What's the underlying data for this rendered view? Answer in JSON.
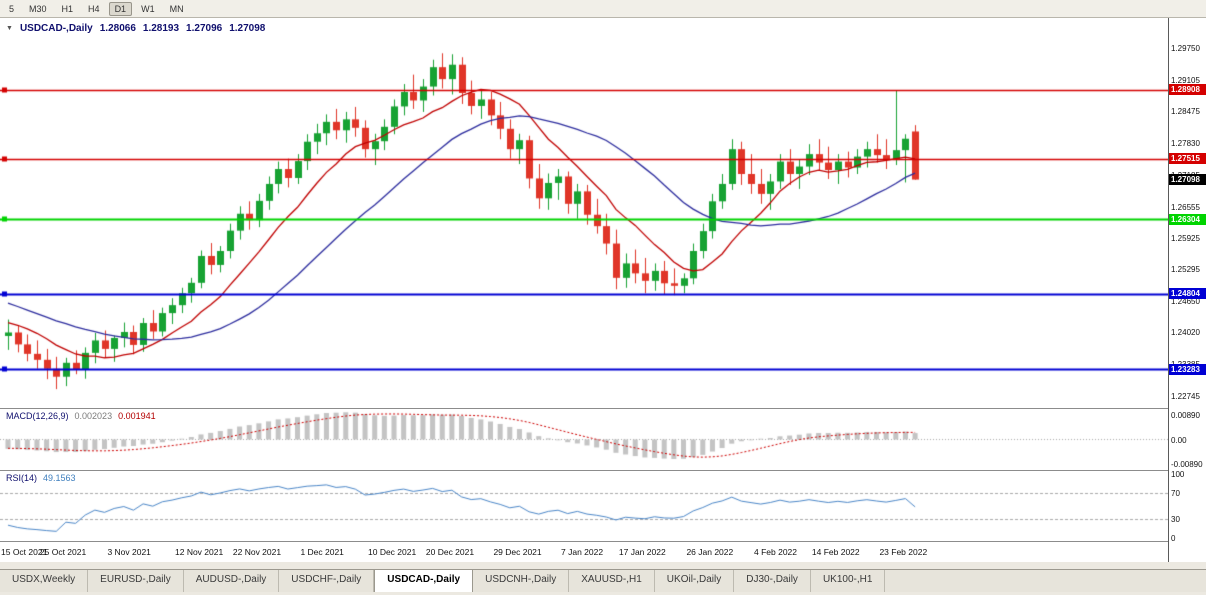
{
  "toolbar": {
    "timeframes": [
      "5",
      "M30",
      "H1",
      "H4",
      "D1",
      "W1",
      "MN"
    ],
    "active": "D1"
  },
  "chart": {
    "title": {
      "symbol": "USDCAD-,Daily",
      "open": "1.28066",
      "high": "1.28193",
      "low": "1.27096",
      "close": "1.27098"
    },
    "price_axis": {
      "ticks": [
        "1.29750",
        "1.29105",
        "1.28475",
        "1.27830",
        "1.27185",
        "1.26555",
        "1.25925",
        "1.25295",
        "1.24650",
        "1.24020",
        "1.23385",
        "1.22745"
      ]
    }
  },
  "indicators": {
    "macd": {
      "label": "MACD(12,26,9)",
      "value_main": "0.002023",
      "value_signal": "0.001941",
      "axis": [
        "0.00890",
        "0.00",
        "-0.00890"
      ],
      "axis_values": [
        0.0089,
        0,
        -0.0089
      ]
    },
    "rsi": {
      "label": "RSI(14)",
      "value": "49.1563",
      "axis": [
        "100",
        "70",
        "30",
        "0"
      ],
      "axis_values": [
        100,
        70,
        30,
        0
      ],
      "levels": [
        70,
        30
      ]
    }
  },
  "tabs": {
    "items": [
      "USDX,Weekly",
      "EURUSD-,Daily",
      "AUDUSD-,Daily",
      "USDCHF-,Daily",
      "USDCAD-,Daily",
      "USDCNH-,Daily",
      "XAUUSD-,H1",
      "UKOil-,Daily",
      "DJ30-,Daily",
      "UK100-,H1"
    ],
    "active_index": 4
  },
  "chart_data": {
    "type": "candlestick",
    "symbol": "USDCAD-",
    "timeframe": "Daily",
    "ylim": [
      1.225,
      1.3035
    ],
    "date_axis": {
      "labels": [
        "15 Oct 2021",
        "25 Oct 2021",
        "3 Nov 2021",
        "12 Nov 2021",
        "22 Nov 2021",
        "1 Dec 2021",
        "10 Dec 2021",
        "20 Dec 2021",
        "29 Dec 2021",
        "7 Jan 2022",
        "17 Jan 2022",
        "26 Jan 2022",
        "4 Feb 2022",
        "14 Feb 2022",
        "23 Feb 2022"
      ],
      "positions": [
        0,
        6,
        13,
        20,
        26,
        33,
        40,
        46,
        53,
        60,
        66,
        73,
        80,
        86,
        93
      ]
    },
    "candles": [
      [
        1.2395,
        1.2428,
        1.2367,
        1.2402
      ],
      [
        1.2402,
        1.2415,
        1.2362,
        1.2378
      ],
      [
        1.2378,
        1.2398,
        1.2344,
        1.2359
      ],
      [
        1.2359,
        1.2386,
        1.2329,
        1.2347
      ],
      [
        1.2347,
        1.2369,
        1.2308,
        1.2329
      ],
      [
        1.2329,
        1.2353,
        1.2288,
        1.2313
      ],
      [
        1.2313,
        1.2351,
        1.2294,
        1.2341
      ],
      [
        1.2341,
        1.2366,
        1.2318,
        1.2328
      ],
      [
        1.2328,
        1.2372,
        1.2309,
        1.2361
      ],
      [
        1.2361,
        1.2401,
        1.234,
        1.2386
      ],
      [
        1.2386,
        1.2406,
        1.2352,
        1.2369
      ],
      [
        1.2369,
        1.2396,
        1.2343,
        1.2391
      ],
      [
        1.2391,
        1.2422,
        1.2372,
        1.2403
      ],
      [
        1.2403,
        1.2416,
        1.2358,
        1.2377
      ],
      [
        1.2377,
        1.2431,
        1.2363,
        1.2421
      ],
      [
        1.2421,
        1.2447,
        1.2389,
        1.2404
      ],
      [
        1.2404,
        1.2452,
        1.2394,
        1.2441
      ],
      [
        1.2441,
        1.2471,
        1.2419,
        1.2457
      ],
      [
        1.2457,
        1.2492,
        1.2441,
        1.2481
      ],
      [
        1.2481,
        1.2512,
        1.2462,
        1.2502
      ],
      [
        1.2502,
        1.2567,
        1.2491,
        1.2556
      ],
      [
        1.2556,
        1.2582,
        1.2519,
        1.2538
      ],
      [
        1.2538,
        1.2576,
        1.2523,
        1.2566
      ],
      [
        1.2566,
        1.2621,
        1.2551,
        1.2607
      ],
      [
        1.2607,
        1.2656,
        1.2589,
        1.2641
      ],
      [
        1.2641,
        1.2666,
        1.2609,
        1.2628
      ],
      [
        1.2628,
        1.2681,
        1.2614,
        1.2667
      ],
      [
        1.2667,
        1.2716,
        1.2649,
        1.2701
      ],
      [
        1.2701,
        1.2746,
        1.2682,
        1.2731
      ],
      [
        1.2731,
        1.2752,
        1.2694,
        1.2713
      ],
      [
        1.2713,
        1.2761,
        1.2701,
        1.2747
      ],
      [
        1.2747,
        1.2801,
        1.2729,
        1.2786
      ],
      [
        1.2786,
        1.2822,
        1.2761,
        1.2803
      ],
      [
        1.2803,
        1.2841,
        1.2779,
        1.2826
      ],
      [
        1.2826,
        1.2852,
        1.2791,
        1.2809
      ],
      [
        1.2809,
        1.2846,
        1.2784,
        1.2831
      ],
      [
        1.2831,
        1.2856,
        1.2796,
        1.2814
      ],
      [
        1.2814,
        1.2829,
        1.2754,
        1.2771
      ],
      [
        1.2771,
        1.2802,
        1.2739,
        1.2787
      ],
      [
        1.2787,
        1.2831,
        1.2769,
        1.2816
      ],
      [
        1.2816,
        1.2871,
        1.2801,
        1.2857
      ],
      [
        1.2857,
        1.2902,
        1.2839,
        1.2886
      ],
      [
        1.2886,
        1.2921,
        1.2852,
        1.2869
      ],
      [
        1.2869,
        1.2912,
        1.2846,
        1.2897
      ],
      [
        1.2897,
        1.2951,
        1.2879,
        1.2936
      ],
      [
        1.2936,
        1.2964,
        1.2893,
        1.2912
      ],
      [
        1.2912,
        1.2962,
        1.2881,
        1.2941
      ],
      [
        1.2941,
        1.2956,
        1.2862,
        1.2884
      ],
      [
        1.2884,
        1.2909,
        1.2841,
        1.2858
      ],
      [
        1.2858,
        1.2892,
        1.2832,
        1.2871
      ],
      [
        1.2871,
        1.2886,
        1.2819,
        1.2839
      ],
      [
        1.2839,
        1.2866,
        1.2791,
        1.2812
      ],
      [
        1.2812,
        1.2831,
        1.2752,
        1.2771
      ],
      [
        1.2771,
        1.2802,
        1.2741,
        1.2789
      ],
      [
        1.2789,
        1.2798,
        1.2692,
        1.2712
      ],
      [
        1.2712,
        1.2741,
        1.2651,
        1.2672
      ],
      [
        1.2672,
        1.2722,
        1.2649,
        1.2703
      ],
      [
        1.2703,
        1.2731,
        1.2669,
        1.2716
      ],
      [
        1.2716,
        1.2726,
        1.2641,
        1.2661
      ],
      [
        1.2661,
        1.2701,
        1.2631,
        1.2686
      ],
      [
        1.2686,
        1.2699,
        1.2619,
        1.2639
      ],
      [
        1.2639,
        1.2671,
        1.2601,
        1.2616
      ],
      [
        1.2616,
        1.2641,
        1.2559,
        1.2581
      ],
      [
        1.2581,
        1.2609,
        1.2489,
        1.2512
      ],
      [
        1.2512,
        1.2561,
        1.2492,
        1.2541
      ],
      [
        1.2541,
        1.2569,
        1.2501,
        1.2521
      ],
      [
        1.2521,
        1.2552,
        1.2481,
        1.2506
      ],
      [
        1.2506,
        1.2541,
        1.2486,
        1.2526
      ],
      [
        1.2526,
        1.2546,
        1.2479,
        1.2501
      ],
      [
        1.2501,
        1.2531,
        1.2477,
        1.2496
      ],
      [
        1.2496,
        1.2521,
        1.2481,
        1.2511
      ],
      [
        1.2511,
        1.2581,
        1.2499,
        1.2566
      ],
      [
        1.2566,
        1.2621,
        1.2551,
        1.2606
      ],
      [
        1.2606,
        1.2681,
        1.2591,
        1.2666
      ],
      [
        1.2666,
        1.2721,
        1.2651,
        1.2701
      ],
      [
        1.2701,
        1.2791,
        1.2689,
        1.2771
      ],
      [
        1.2771,
        1.2786,
        1.2699,
        1.2721
      ],
      [
        1.2721,
        1.2761,
        1.2681,
        1.2701
      ],
      [
        1.2701,
        1.2731,
        1.2661,
        1.2681
      ],
      [
        1.2681,
        1.2721,
        1.2649,
        1.2706
      ],
      [
        1.2706,
        1.2761,
        1.2691,
        1.2746
      ],
      [
        1.2746,
        1.2771,
        1.2699,
        1.2721
      ],
      [
        1.2721,
        1.2751,
        1.2691,
        1.2736
      ],
      [
        1.2736,
        1.2781,
        1.2719,
        1.2761
      ],
      [
        1.2761,
        1.2791,
        1.2729,
        1.2744
      ],
      [
        1.2744,
        1.2776,
        1.2711,
        1.2729
      ],
      [
        1.2729,
        1.2761,
        1.2701,
        1.2746
      ],
      [
        1.2746,
        1.2766,
        1.2714,
        1.2734
      ],
      [
        1.2734,
        1.2771,
        1.2721,
        1.2756
      ],
      [
        1.2756,
        1.2786,
        1.2734,
        1.2771
      ],
      [
        1.2771,
        1.2801,
        1.2744,
        1.2759
      ],
      [
        1.2759,
        1.2791,
        1.2731,
        1.2749
      ],
      [
        1.2749,
        1.289,
        1.2739,
        1.2769
      ],
      [
        1.2769,
        1.2801,
        1.2704,
        1.2792
      ],
      [
        1.28066,
        1.28193,
        1.27096,
        1.27098
      ]
    ],
    "overlays": [
      {
        "name": "ma-fast",
        "type": "sma",
        "period": 10,
        "color": "#C00000"
      },
      {
        "name": "ma-slow",
        "type": "sma",
        "period": 24,
        "color": "#2C2C9E"
      }
    ],
    "levels": [
      {
        "price": 1.28908,
        "label": "1.28908",
        "color": "#D40000",
        "line": true,
        "width": 1.6
      },
      {
        "price": 1.27515,
        "label": "1.27515",
        "color": "#D40000",
        "line": true,
        "width": 1.6
      },
      {
        "price": 1.27098,
        "label": "1.27098",
        "color": "#000000",
        "line": false,
        "width": 0
      },
      {
        "price": 1.26304,
        "label": "1.26304",
        "color": "#00D400",
        "line": true,
        "width": 2
      },
      {
        "price": 1.24804,
        "label": "1.24804",
        "color": "#0000D4",
        "line": true,
        "width": 2
      },
      {
        "price": 1.23283,
        "label": "1.23283",
        "color": "#0000D4",
        "line": true,
        "width": 2
      }
    ],
    "macd_params": {
      "fast": 12,
      "slow": 26,
      "signal": 9
    },
    "rsi_params": {
      "period": 14
    },
    "colors": {
      "up": "#17A233",
      "down": "#E03528",
      "ma_fast": "#C00000",
      "ma_slow": "#2C2C9E",
      "macd_hist": "#C4C4C4",
      "macd_signal": "#CE0000",
      "rsi": "#4A86C8",
      "grid_dash": "#A9A9A9"
    }
  }
}
